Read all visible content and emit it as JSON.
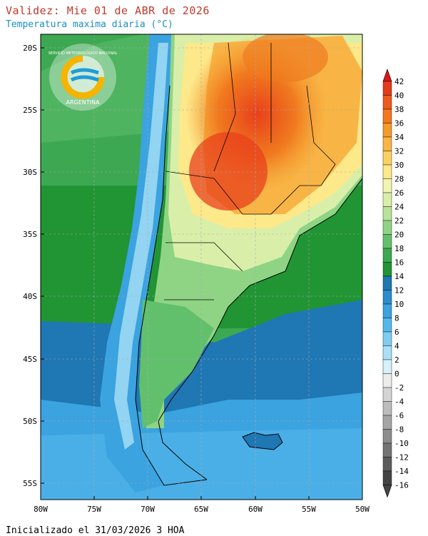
{
  "title": "Validez: Mie 01 de ABR de 2026",
  "subtitle": "Temperatura maxima diaria (°C)",
  "footer": "Inicializado el 31/03/2026 3 HOA",
  "logo": {
    "top_text": "SERVICIO METEOROLOGICO NACIONAL",
    "bottom_text": "ARGENTINA"
  },
  "lat_labels": [
    "20S",
    "25S",
    "30S",
    "35S",
    "40S",
    "45S",
    "50S",
    "55S"
  ],
  "lon_labels": [
    "80W",
    "75W",
    "70W",
    "65W",
    "60W",
    "55W",
    "50W"
  ],
  "colorbar": {
    "labels": [
      "42",
      "40",
      "38",
      "36",
      "34",
      "32",
      "30",
      "28",
      "26",
      "24",
      "22",
      "20",
      "18",
      "16",
      "14",
      "12",
      "10",
      "8",
      "6",
      "4",
      "2",
      "0",
      "-2",
      "-4",
      "-6",
      "-8",
      "-10",
      "-12",
      "-14",
      "-16"
    ],
    "colors": [
      "#d7191c",
      "#e33b1c",
      "#ee5a1e",
      "#f3781f",
      "#f69a2c",
      "#f8b545",
      "#fbd063",
      "#fde88a",
      "#f2f5b0",
      "#d9efa9",
      "#b8e39a",
      "#8fd485",
      "#62c06d",
      "#3ca852",
      "#219434",
      "#1f77b4",
      "#2a8dcc",
      "#3aa3e0",
      "#55b8ea",
      "#7ecdf0",
      "#a9e0f5",
      "#d5f1fa",
      "#ececec",
      "#d4d4d4",
      "#bcbcbc",
      "#a4a4a4",
      "#8c8c8c",
      "#747474",
      "#5c5c5c",
      "#444444"
    ]
  }
}
